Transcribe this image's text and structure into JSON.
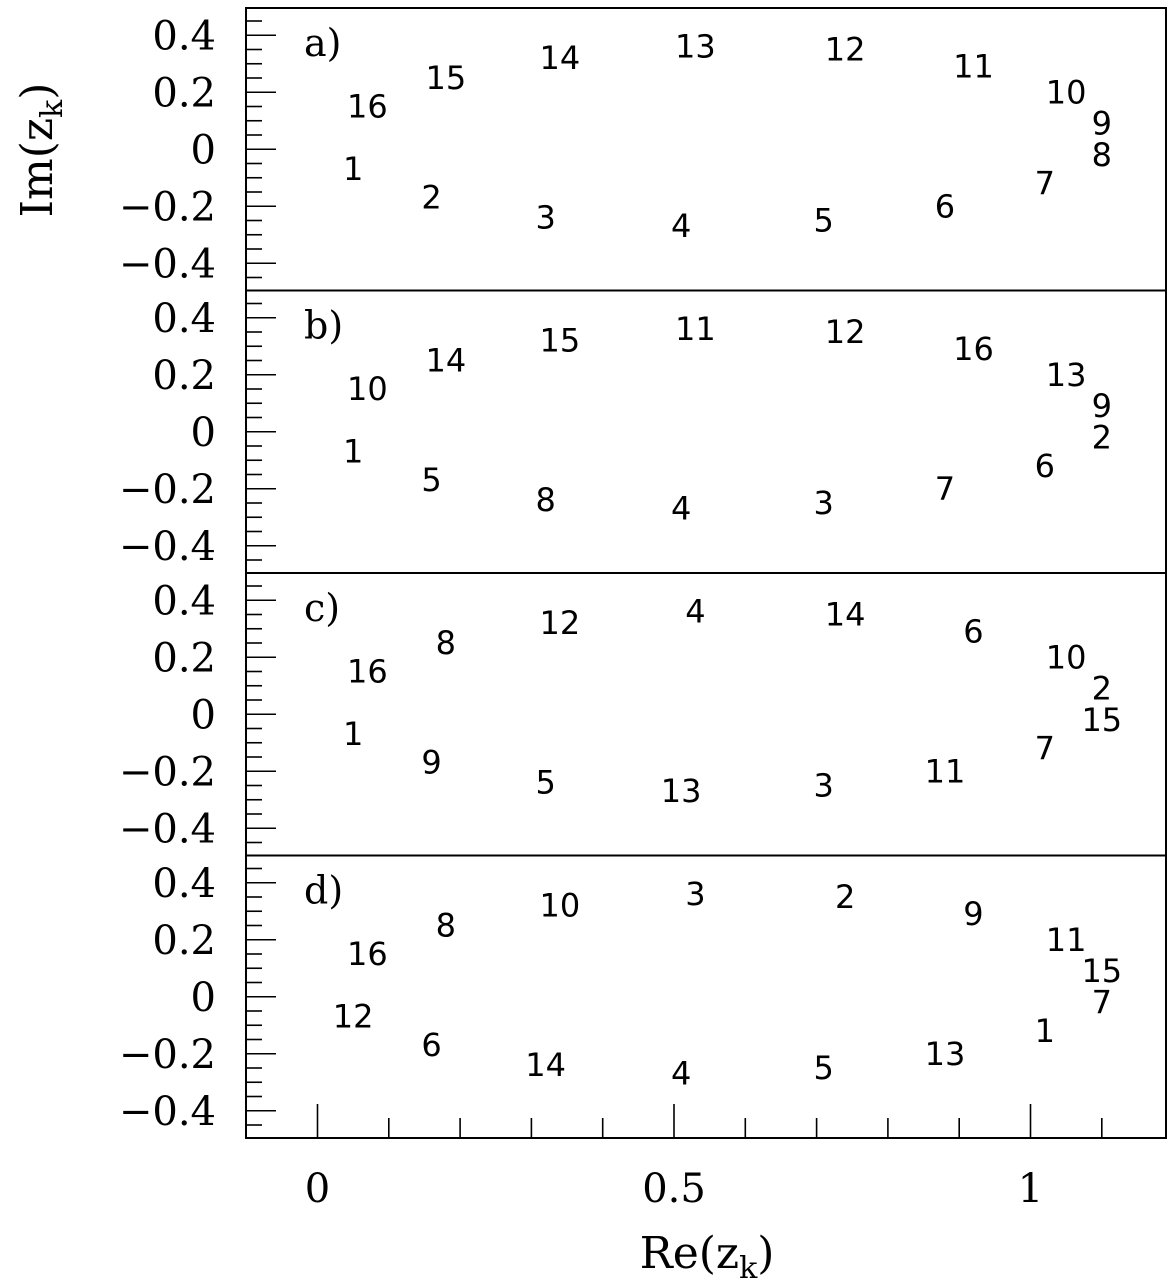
{
  "chart_data": {
    "type": "scatter",
    "xlabel": "Re(z",
    "xlabel_sub": "k",
    "xlabel_close": ")",
    "ylabel": "Im(z",
    "ylabel_sub": "k",
    "ylabel_close": ")",
    "xlim": [
      -0.1,
      1.19
    ],
    "ylim": [
      -0.5,
      0.5
    ],
    "x_ticks": [
      {
        "value": 0,
        "label": "0"
      },
      {
        "value": 0.5,
        "label": "0.5"
      },
      {
        "value": 1,
        "label": "1"
      }
    ],
    "y_ticks": [
      {
        "value": 0.4,
        "label": "0.4"
      },
      {
        "value": 0.2,
        "label": "0.2"
      },
      {
        "value": 0,
        "label": "0"
      },
      {
        "value": -0.2,
        "label": "−0.2"
      },
      {
        "value": -0.4,
        "label": "−0.4"
      }
    ],
    "marker_positions": [
      {
        "x": 0.05,
        "y": -0.07
      },
      {
        "x": 0.16,
        "y": -0.17
      },
      {
        "x": 0.32,
        "y": -0.24
      },
      {
        "x": 0.51,
        "y": -0.27
      },
      {
        "x": 0.71,
        "y": -0.25
      },
      {
        "x": 0.88,
        "y": -0.2
      },
      {
        "x": 1.02,
        "y": -0.12
      },
      {
        "x": 1.1,
        "y": -0.02
      },
      {
        "x": 1.1,
        "y": 0.09
      },
      {
        "x": 1.05,
        "y": 0.2
      },
      {
        "x": 0.92,
        "y": 0.29
      },
      {
        "x": 0.74,
        "y": 0.35
      },
      {
        "x": 0.53,
        "y": 0.36
      },
      {
        "x": 0.34,
        "y": 0.32
      },
      {
        "x": 0.18,
        "y": 0.25
      },
      {
        "x": 0.07,
        "y": 0.15
      }
    ],
    "panels": [
      {
        "label": "a)",
        "labels": [
          "1",
          "2",
          "3",
          "4",
          "5",
          "6",
          "7",
          "8",
          "9",
          "10",
          "11",
          "12",
          "13",
          "14",
          "15",
          "16"
        ]
      },
      {
        "label": "b)",
        "labels": [
          "1",
          "5",
          "8",
          "4",
          "3",
          "7",
          "6",
          "2",
          "9",
          "13",
          "16",
          "12",
          "11",
          "15",
          "14",
          "10"
        ]
      },
      {
        "label": "c)",
        "labels": [
          "1",
          "9",
          "5",
          "13",
          "3",
          "11",
          "7",
          "15",
          "2",
          "10",
          "6",
          "14",
          "4",
          "12",
          "8",
          "16"
        ]
      },
      {
        "label": "d)",
        "labels": [
          "12",
          "6",
          "14",
          "4",
          "5",
          "13",
          "1",
          "7",
          "15",
          "11",
          "9",
          "2",
          "3",
          "10",
          "8",
          "16"
        ]
      }
    ]
  }
}
